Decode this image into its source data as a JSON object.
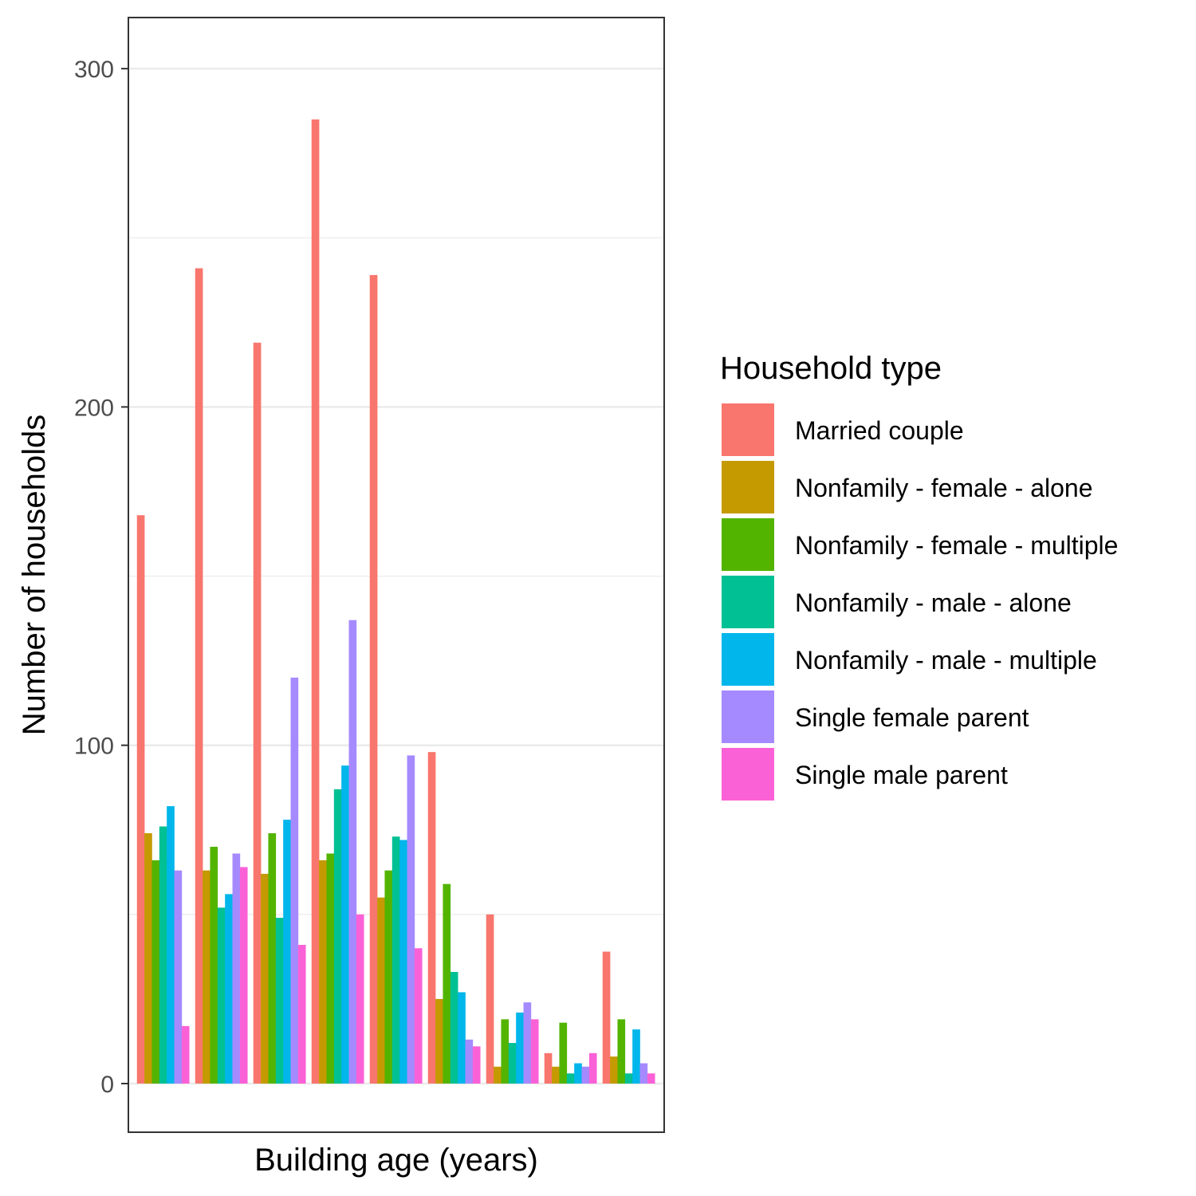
{
  "chart_data": {
    "type": "bar",
    "title": "",
    "xlabel": "Building age (years)",
    "ylabel": "Number of households",
    "ylim": [
      -14,
      315
    ],
    "yticks": [
      0,
      100,
      200,
      300
    ],
    "grid": true,
    "legend": {
      "title": "Household type",
      "position": "right"
    },
    "categories": [
      "",
      "",
      "",
      "",
      "",
      "",
      "",
      "",
      ""
    ],
    "series": [
      {
        "name": "Married couple",
        "color": "#F8766D",
        "values": [
          168,
          241,
          219,
          285,
          239,
          98,
          50,
          9,
          39
        ]
      },
      {
        "name": "Nonfamily - female - alone",
        "color": "#C49A00",
        "values": [
          74,
          63,
          62,
          66,
          55,
          25,
          5,
          5,
          8
        ]
      },
      {
        "name": "Nonfamily - female - multiple",
        "color": "#53B400",
        "values": [
          66,
          70,
          74,
          68,
          63,
          59,
          19,
          18,
          19
        ]
      },
      {
        "name": "Nonfamily - male - alone",
        "color": "#00C094",
        "values": [
          76,
          52,
          49,
          87,
          73,
          33,
          12,
          3,
          3
        ]
      },
      {
        "name": "Nonfamily - male - multiple",
        "color": "#00B6EB",
        "values": [
          82,
          56,
          78,
          94,
          72,
          27,
          21,
          6,
          16
        ]
      },
      {
        "name": "Single female parent",
        "color": "#A58AFF",
        "values": [
          63,
          68,
          120,
          137,
          97,
          13,
          24,
          5,
          6
        ]
      },
      {
        "name": "Single male parent",
        "color": "#FB61D7",
        "values": [
          17,
          64,
          41,
          50,
          40,
          11,
          19,
          9,
          3
        ]
      }
    ]
  }
}
